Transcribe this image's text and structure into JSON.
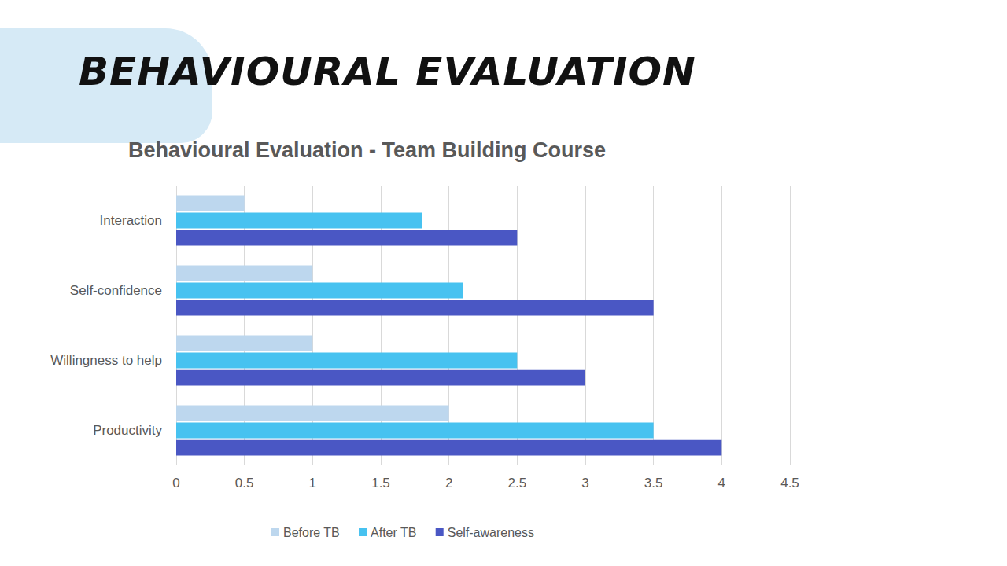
{
  "heading": "BEHAVIOURAL EVALUATION",
  "chart_data": {
    "type": "bar",
    "orientation": "horizontal",
    "title": "Behavioural Evaluation - Team Building Course",
    "categories": [
      "Interaction",
      "Self-confidence",
      "Willingness to help",
      "Productivity"
    ],
    "series": [
      {
        "name": "Before TB",
        "color": "#bdd7ee",
        "values": [
          0.5,
          1,
          1,
          2
        ]
      },
      {
        "name": "After TB",
        "color": "#47c2f0",
        "values": [
          1.8,
          2.1,
          2.5,
          3.5
        ]
      },
      {
        "name": "Self-awareness",
        "color": "#4a57c4",
        "values": [
          2.5,
          3.5,
          3,
          4
        ]
      }
    ],
    "xlim": [
      0,
      4.5
    ],
    "xticks": [
      0,
      0.5,
      1,
      1.5,
      2,
      2.5,
      3,
      3.5,
      4,
      4.5
    ],
    "grid": true,
    "legend": "bottom"
  }
}
